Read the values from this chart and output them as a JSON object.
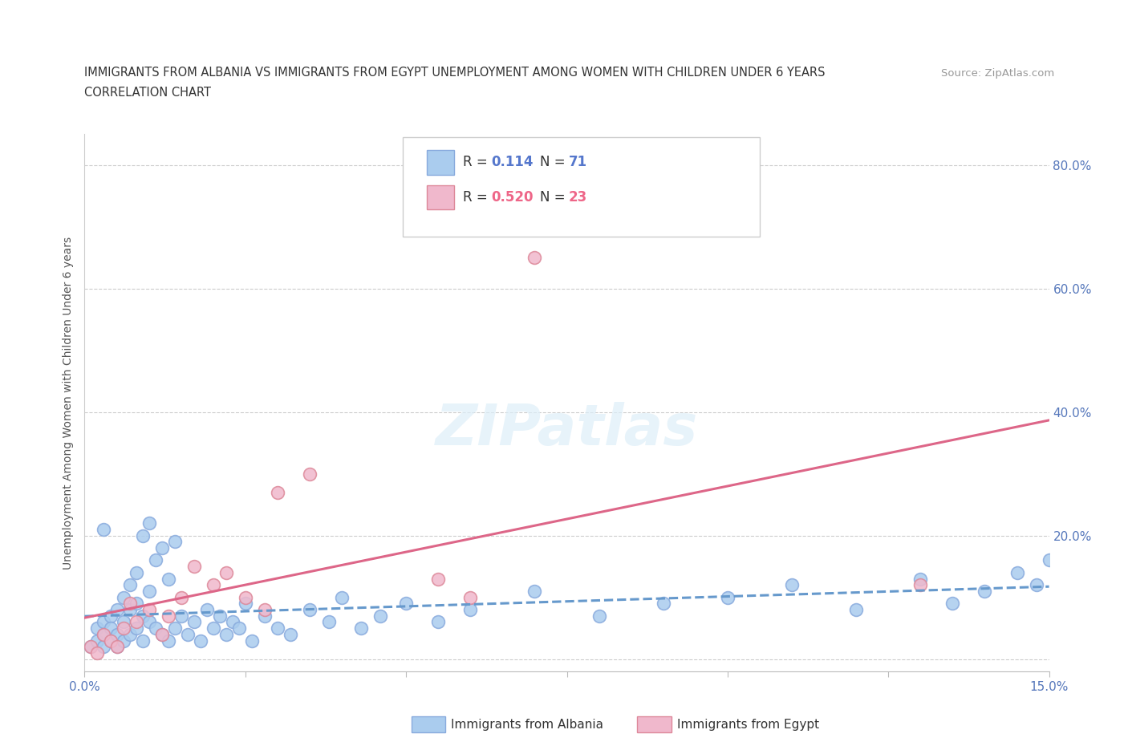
{
  "title_line1": "IMMIGRANTS FROM ALBANIA VS IMMIGRANTS FROM EGYPT UNEMPLOYMENT AMONG WOMEN WITH CHILDREN UNDER 6 YEARS",
  "title_line2": "CORRELATION CHART",
  "source": "Source: ZipAtlas.com",
  "ylabel": "Unemployment Among Women with Children Under 6 years",
  "xmin": 0.0,
  "xmax": 0.15,
  "ymin": -0.02,
  "ymax": 0.85,
  "yticks": [
    0.0,
    0.2,
    0.4,
    0.6,
    0.8
  ],
  "ytick_labels": [
    "",
    "20.0%",
    "40.0%",
    "60.0%",
    "80.0%"
  ],
  "xticks": [
    0.0,
    0.025,
    0.05,
    0.075,
    0.1,
    0.125,
    0.15
  ],
  "xtick_labels": [
    "0.0%",
    "",
    "",
    "",
    "",
    "",
    "15.0%"
  ],
  "albania_color": "#aaccee",
  "egypt_color": "#f0b8cc",
  "albania_edge_color": "#88aadd",
  "egypt_edge_color": "#dd8899",
  "trend_albania_color": "#6699cc",
  "trend_egypt_color": "#dd6688",
  "watermark": "ZIPatlas",
  "background_color": "#ffffff",
  "grid_color": "#cccccc",
  "albania_x": [
    0.001,
    0.002,
    0.002,
    0.003,
    0.003,
    0.003,
    0.004,
    0.004,
    0.004,
    0.005,
    0.005,
    0.005,
    0.006,
    0.006,
    0.006,
    0.007,
    0.007,
    0.007,
    0.008,
    0.008,
    0.008,
    0.009,
    0.009,
    0.009,
    0.01,
    0.01,
    0.01,
    0.011,
    0.011,
    0.012,
    0.012,
    0.013,
    0.013,
    0.014,
    0.014,
    0.015,
    0.016,
    0.017,
    0.018,
    0.019,
    0.02,
    0.021,
    0.022,
    0.023,
    0.024,
    0.025,
    0.026,
    0.028,
    0.03,
    0.032,
    0.035,
    0.038,
    0.04,
    0.043,
    0.046,
    0.05,
    0.055,
    0.06,
    0.07,
    0.08,
    0.09,
    0.1,
    0.11,
    0.12,
    0.13,
    0.135,
    0.14,
    0.145,
    0.148,
    0.15,
    0.003
  ],
  "albania_y": [
    0.02,
    0.03,
    0.05,
    0.04,
    0.06,
    0.02,
    0.03,
    0.07,
    0.05,
    0.04,
    0.08,
    0.02,
    0.03,
    0.06,
    0.1,
    0.04,
    0.08,
    0.12,
    0.05,
    0.09,
    0.14,
    0.03,
    0.07,
    0.2,
    0.06,
    0.11,
    0.22,
    0.05,
    0.16,
    0.04,
    0.18,
    0.03,
    0.13,
    0.05,
    0.19,
    0.07,
    0.04,
    0.06,
    0.03,
    0.08,
    0.05,
    0.07,
    0.04,
    0.06,
    0.05,
    0.09,
    0.03,
    0.07,
    0.05,
    0.04,
    0.08,
    0.06,
    0.1,
    0.05,
    0.07,
    0.09,
    0.06,
    0.08,
    0.11,
    0.07,
    0.09,
    0.1,
    0.12,
    0.08,
    0.13,
    0.09,
    0.11,
    0.14,
    0.12,
    0.16,
    0.21
  ],
  "egypt_x": [
    0.001,
    0.002,
    0.003,
    0.004,
    0.005,
    0.006,
    0.007,
    0.008,
    0.01,
    0.012,
    0.013,
    0.015,
    0.017,
    0.02,
    0.022,
    0.025,
    0.028,
    0.03,
    0.035,
    0.055,
    0.06,
    0.07,
    0.13
  ],
  "egypt_y": [
    0.02,
    0.01,
    0.04,
    0.03,
    0.02,
    0.05,
    0.09,
    0.06,
    0.08,
    0.04,
    0.07,
    0.1,
    0.15,
    0.12,
    0.14,
    0.1,
    0.08,
    0.27,
    0.3,
    0.13,
    0.1,
    0.65,
    0.12
  ]
}
